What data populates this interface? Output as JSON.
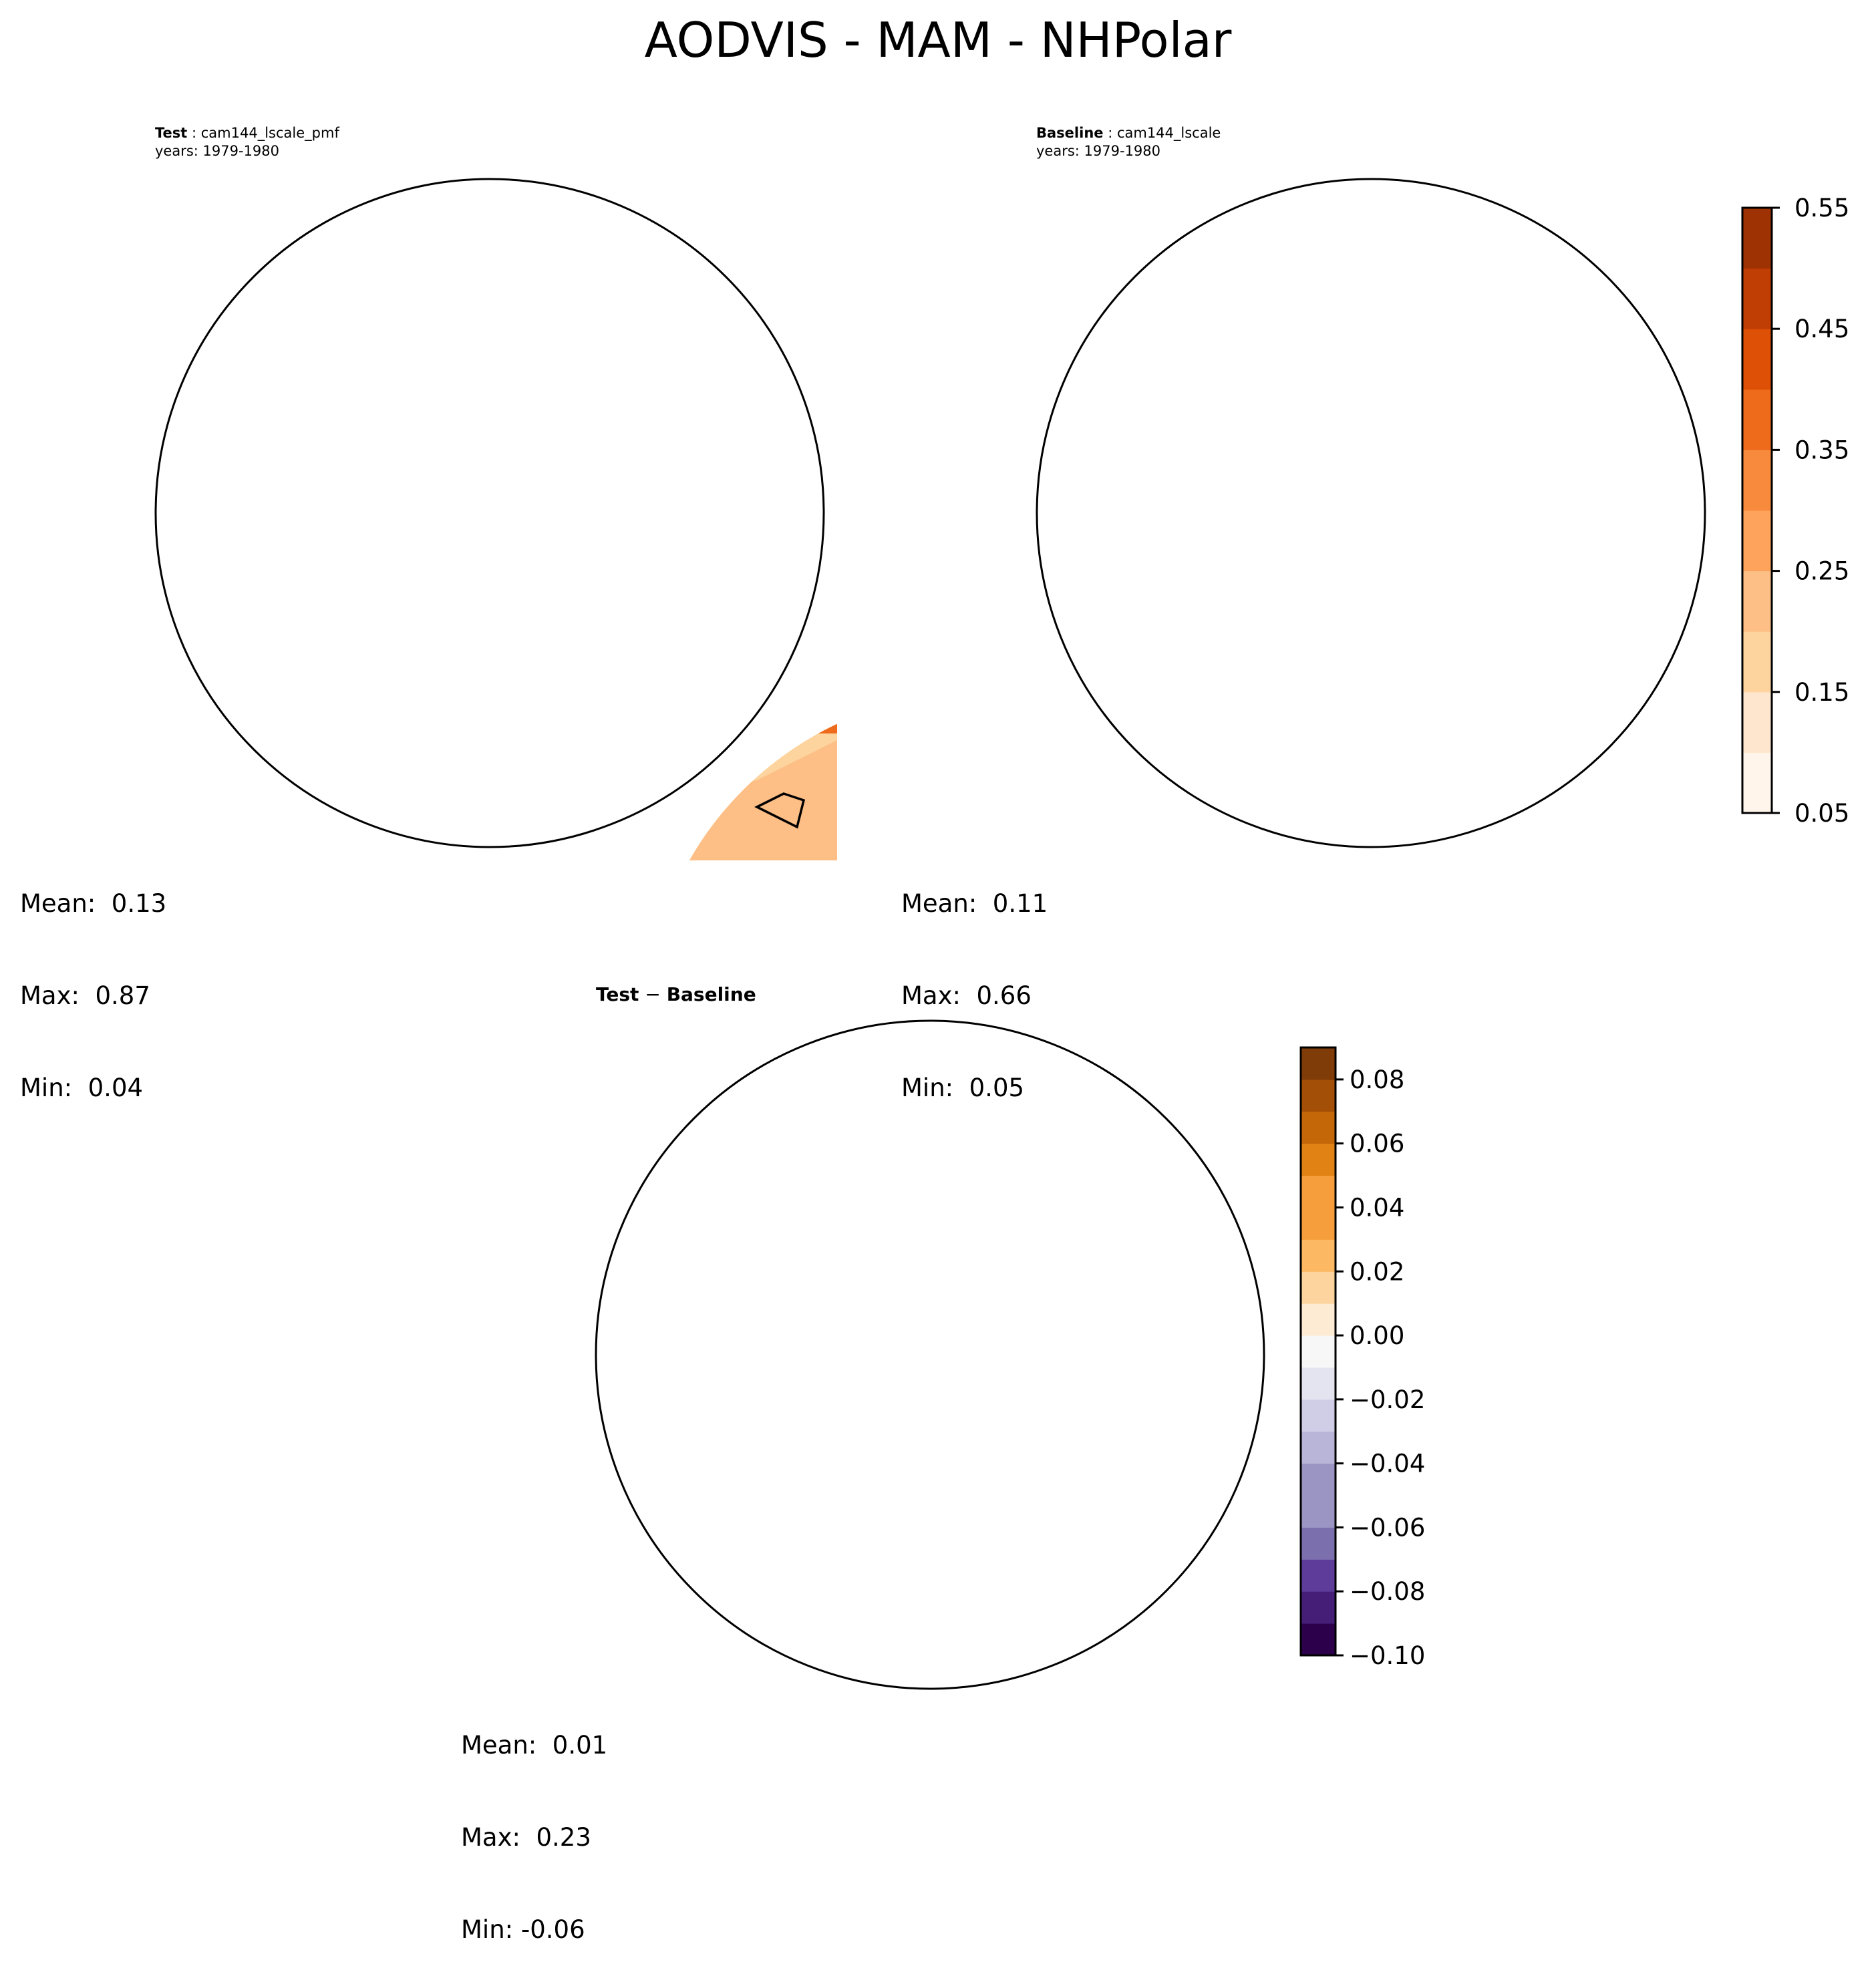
{
  "figure": {
    "title": "AODVIS - MAM - NHPolar"
  },
  "colors": {
    "seq": [
      "#fff5eb",
      "#fee6ce",
      "#fdd49e",
      "#fdbf86",
      "#fda35c",
      "#f78a3c",
      "#ee6b1c",
      "#dd5005",
      "#c03e03",
      "#9e3203",
      "#7f2704"
    ],
    "div": [
      "#2d004b",
      "#451e78",
      "#5e3c99",
      "#7b6fad",
      "#9b95c4",
      "#b8b5d8",
      "#d0cde6",
      "#e4e3f0",
      "#f7f7f7",
      "#fdebd3",
      "#fdd49e",
      "#fdb863",
      "#f69e3c",
      "#e08214",
      "#c36709",
      "#a34f08",
      "#7f3b08"
    ],
    "coast": "#000000"
  },
  "panels": [
    {
      "id": "test",
      "label_bold": "Test",
      "case": "cam144_lscale_pmf",
      "years": "years: 1979-1980",
      "stats": {
        "mean": "Mean:  0.13",
        "max": "Max:  0.87",
        "min": "Min:  0.04"
      }
    },
    {
      "id": "baseline",
      "label_bold": "Baseline",
      "case": "cam144_lscale",
      "years": "years: 1979-1980",
      "stats": {
        "mean": "Mean:  0.11",
        "max": "Max:  0.66",
        "min": "Min:  0.05"
      }
    },
    {
      "id": "diff",
      "label_bold": "Test",
      "label_mid": " − ",
      "label_bold2": "Baseline",
      "stats": {
        "mean": "Mean:  0.01",
        "max": "Max:  0.23",
        "min": "Min: -0.06"
      }
    }
  ],
  "colorbars": {
    "main": {
      "ticks": [
        "0.55",
        "0.45",
        "0.35",
        "0.25",
        "0.15",
        "0.05"
      ]
    },
    "diff": {
      "ticks": [
        "0.08",
        "0.06",
        "0.04",
        "0.02",
        "0.00",
        "−0.02",
        "−0.04",
        "−0.06",
        "−0.08",
        "−0.10"
      ]
    }
  }
}
